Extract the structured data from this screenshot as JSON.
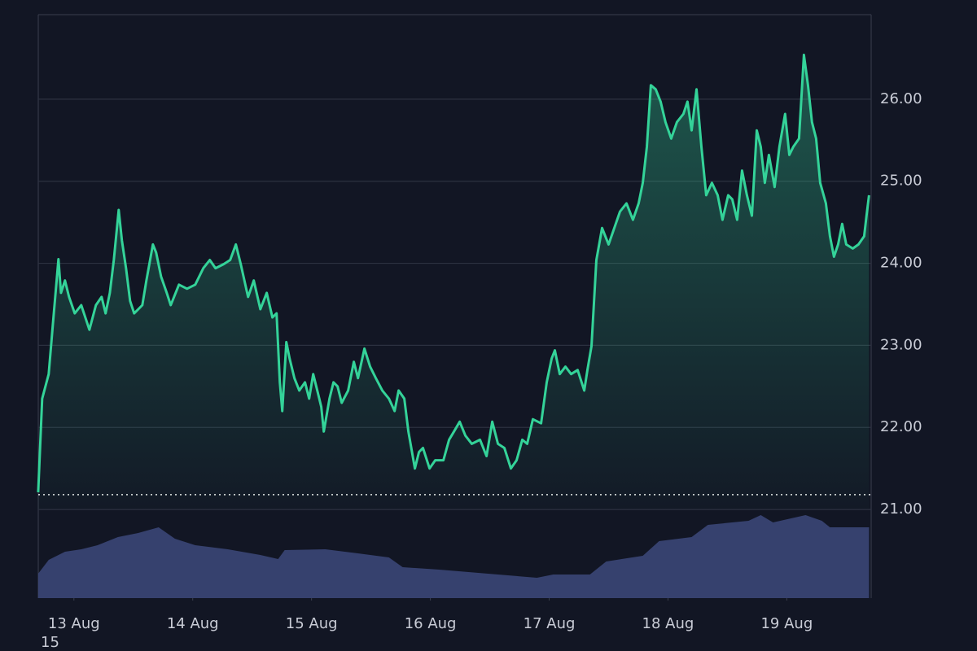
{
  "chart_data": {
    "type": "line",
    "footnote": "15",
    "xlim": [
      12.7,
      19.71
    ],
    "ylim": [
      19.92,
      27.03
    ],
    "xticks": [
      {
        "value": 13,
        "label": "13 Aug"
      },
      {
        "value": 14,
        "label": "14 Aug"
      },
      {
        "value": 15,
        "label": "15 Aug"
      },
      {
        "value": 16,
        "label": "16 Aug"
      },
      {
        "value": 17,
        "label": "17 Aug"
      },
      {
        "value": 18,
        "label": "18 Aug"
      },
      {
        "value": 19,
        "label": "19 Aug"
      }
    ],
    "yticks": [
      {
        "value": 21,
        "label": "21.00"
      },
      {
        "value": 22,
        "label": "22.00"
      },
      {
        "value": 23,
        "label": "23.00"
      },
      {
        "value": 24,
        "label": "24.00"
      },
      {
        "value": 25,
        "label": "25.00"
      },
      {
        "value": 26,
        "label": "26.00"
      }
    ],
    "grid": true,
    "reference_line": 21.18,
    "series": [
      {
        "color": "#34d399",
        "x": [
          12.699,
          12.733,
          12.788,
          12.822,
          12.87,
          12.891,
          12.925,
          12.959,
          13.007,
          13.062,
          13.13,
          13.185,
          13.233,
          13.267,
          13.302,
          13.336,
          13.377,
          13.404,
          13.439,
          13.473,
          13.507,
          13.576,
          13.61,
          13.665,
          13.692,
          13.733,
          13.781,
          13.815,
          13.884,
          13.952,
          14.021,
          14.089,
          14.144,
          14.192,
          14.26,
          14.315,
          14.363,
          14.404,
          14.466,
          14.514,
          14.569,
          14.623,
          14.671,
          14.706,
          14.733,
          14.754,
          14.788,
          14.815,
          14.856,
          14.897,
          14.945,
          14.98,
          15.014,
          15.048,
          15.082,
          15.103,
          15.151,
          15.185,
          15.219,
          15.254,
          15.308,
          15.356,
          15.391,
          15.445,
          15.493,
          15.541,
          15.596,
          15.651,
          15.699,
          15.733,
          15.781,
          15.815,
          15.87,
          15.904,
          15.938,
          15.993,
          16.041,
          16.11,
          16.158,
          16.199,
          16.247,
          16.295,
          16.349,
          16.418,
          16.473,
          16.521,
          16.569,
          16.623,
          16.678,
          16.726,
          16.774,
          16.815,
          16.863,
          16.932,
          16.979,
          17.021,
          17.048,
          17.089,
          17.137,
          17.185,
          17.24,
          17.295,
          17.322,
          17.356,
          17.397,
          17.445,
          17.5,
          17.548,
          17.596,
          17.651,
          17.705,
          17.753,
          17.788,
          17.822,
          17.856,
          17.897,
          17.938,
          17.979,
          18.027,
          18.075,
          18.13,
          18.164,
          18.199,
          18.24,
          18.281,
          18.322,
          18.37,
          18.418,
          18.459,
          18.507,
          18.541,
          18.582,
          18.623,
          18.664,
          18.706,
          18.747,
          18.781,
          18.815,
          18.849,
          18.897,
          18.938,
          18.986,
          19.021,
          19.055,
          19.103,
          19.144,
          19.178,
          19.212,
          19.247,
          19.281,
          19.329,
          19.363,
          19.397,
          19.432,
          19.466,
          19.5,
          19.555,
          19.603,
          19.651,
          19.671,
          19.692
        ],
        "values": [
          21.21,
          22.35,
          22.65,
          23.24,
          24.05,
          23.64,
          23.79,
          23.59,
          23.39,
          23.49,
          23.19,
          23.49,
          23.59,
          23.39,
          23.64,
          24.04,
          24.65,
          24.28,
          23.94,
          23.54,
          23.39,
          23.49,
          23.79,
          24.23,
          24.13,
          23.84,
          23.64,
          23.49,
          23.74,
          23.69,
          23.74,
          23.94,
          24.04,
          23.94,
          23.99,
          24.04,
          24.23,
          23.99,
          23.59,
          23.79,
          23.44,
          23.64,
          23.34,
          23.39,
          22.55,
          22.2,
          23.04,
          22.84,
          22.6,
          22.45,
          22.55,
          22.35,
          22.65,
          22.45,
          22.25,
          21.95,
          22.35,
          22.55,
          22.5,
          22.3,
          22.45,
          22.8,
          22.6,
          22.96,
          22.74,
          22.6,
          22.45,
          22.35,
          22.2,
          22.45,
          22.35,
          21.95,
          21.5,
          21.7,
          21.75,
          21.5,
          21.6,
          21.6,
          21.85,
          21.95,
          22.07,
          21.9,
          21.8,
          21.85,
          21.65,
          22.07,
          21.8,
          21.75,
          21.5,
          21.6,
          21.85,
          21.8,
          22.1,
          22.05,
          22.55,
          22.84,
          22.94,
          22.65,
          22.74,
          22.65,
          22.7,
          22.45,
          22.7,
          22.99,
          24.04,
          24.43,
          24.23,
          24.43,
          24.63,
          24.73,
          24.53,
          24.73,
          24.98,
          25.42,
          26.17,
          26.12,
          25.97,
          25.72,
          25.52,
          25.72,
          25.82,
          25.97,
          25.62,
          26.12,
          25.42,
          24.83,
          24.98,
          24.83,
          24.53,
          24.83,
          24.78,
          24.53,
          25.13,
          24.83,
          24.58,
          25.62,
          25.42,
          24.98,
          25.32,
          24.93,
          25.42,
          25.82,
          25.32,
          25.42,
          25.52,
          26.54,
          26.17,
          25.72,
          25.52,
          24.98,
          24.73,
          24.33,
          24.08,
          24.23,
          24.48,
          24.23,
          24.18,
          24.23,
          24.33,
          24.58,
          24.83
        ]
      }
    ],
    "volume": {
      "color": "#3b4677",
      "x": [
        12.699,
        12.788,
        12.925,
        13.062,
        13.199,
        13.37,
        13.541,
        13.713,
        13.85,
        14.021,
        14.295,
        14.569,
        14.719,
        14.774,
        15.116,
        15.39,
        15.651,
        15.767,
        16.075,
        16.486,
        16.897,
        17.034,
        17.343,
        17.48,
        17.788,
        17.925,
        18.199,
        18.336,
        18.678,
        18.781,
        18.884,
        19.158,
        19.295,
        19.363,
        19.692
      ],
      "values": [
        30,
        47,
        57,
        60,
        65,
        75,
        80,
        87,
        73,
        65,
        60,
        53,
        48,
        59,
        60,
        55,
        50,
        38,
        35,
        30,
        25,
        29,
        29,
        45,
        52,
        70,
        75,
        90,
        95,
        102,
        93,
        102,
        95,
        87,
        87
      ]
    }
  }
}
